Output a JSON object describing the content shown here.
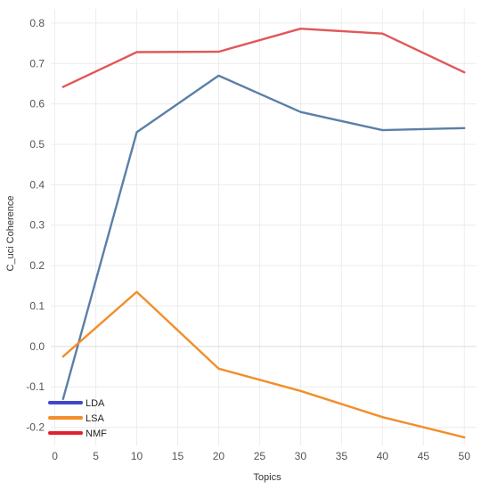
{
  "chart_data": {
    "type": "line",
    "title": "",
    "xlabel": "Topics",
    "ylabel": "C_uci Coherence",
    "x": [
      1,
      10,
      20,
      30,
      40,
      50
    ],
    "xlim": [
      -0.5,
      51.5
    ],
    "ylim": [
      -0.245,
      0.835
    ],
    "xticks": [
      0,
      5,
      10,
      15,
      20,
      25,
      30,
      35,
      40,
      45,
      50
    ],
    "yticks": [
      -0.2,
      -0.1,
      0.0,
      0.1,
      0.2,
      0.3,
      0.4,
      0.5,
      0.6,
      0.7,
      0.8
    ],
    "ytick_labels": [
      "-0.2",
      "-0.1",
      "0.0",
      "0.1",
      "0.2",
      "0.3",
      "0.4",
      "0.5",
      "0.6",
      "0.7",
      "0.8"
    ],
    "grid": true,
    "legend_position": "bottom-left",
    "series": [
      {
        "name": "LDA",
        "values": [
          -0.13,
          0.53,
          0.67,
          0.58,
          0.535,
          0.54
        ],
        "line_color": "#5b7fa8",
        "legend_color": "#3f48cc"
      },
      {
        "name": "LSA",
        "values": [
          -0.025,
          0.135,
          -0.055,
          -0.11,
          -0.175,
          -0.225
        ],
        "line_color": "#f28e2b",
        "legend_color": "#f28e2b"
      },
      {
        "name": "NMF",
        "values": [
          0.642,
          0.728,
          0.729,
          0.786,
          0.774,
          0.678
        ],
        "line_color": "#e15759",
        "legend_color": "#e0202d"
      }
    ]
  }
}
